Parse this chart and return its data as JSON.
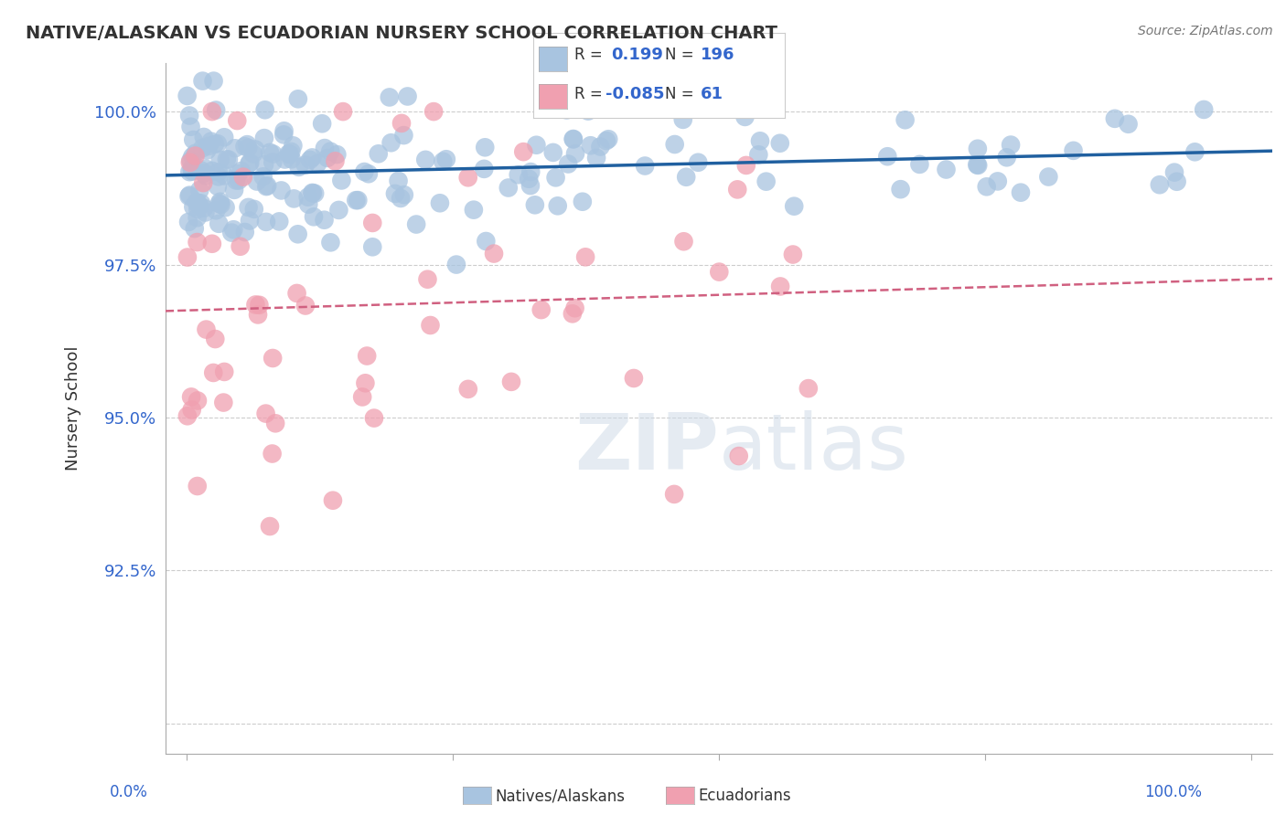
{
  "title": "NATIVE/ALASKAN VS ECUADORIAN NURSERY SCHOOL CORRELATION CHART",
  "source": "Source: ZipAtlas.com",
  "ylabel": "Nursery School",
  "legend_blue_r_val": "0.199",
  "legend_blue_n_val": "196",
  "legend_pink_r_val": "-0.085",
  "legend_pink_n_val": "61",
  "legend_label_blue": "Natives/Alaskans",
  "legend_label_pink": "Ecuadorians",
  "blue_color": "#a8c4e0",
  "blue_line_color": "#2060a0",
  "pink_color": "#f0a0b0",
  "pink_line_color": "#d06080",
  "yticks": [
    90.0,
    92.5,
    95.0,
    97.5,
    100.0
  ],
  "ytick_labels": [
    "",
    "92.5%",
    "95.0%",
    "97.5%",
    "100.0%"
  ],
  "ylim": [
    89.5,
    100.8
  ],
  "xlim": [
    -2.0,
    102.0
  ],
  "blue_r": 0.199,
  "pink_r": -0.085,
  "blue_n": 196,
  "pink_n": 61,
  "blue_seed": 42,
  "pink_seed": 99,
  "background_color": "#ffffff",
  "watermark_color": "#d0dce8",
  "grid_color": "#cccccc"
}
